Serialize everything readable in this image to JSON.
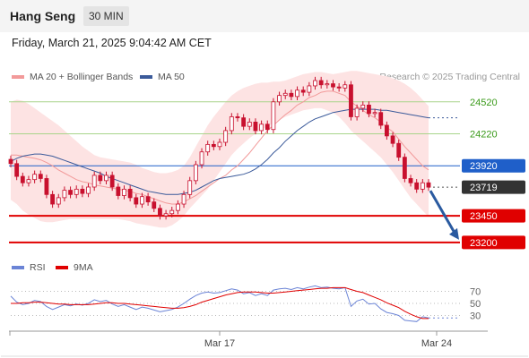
{
  "header": {
    "title": "Hang Seng",
    "interval": "30 MIN",
    "datetime": "Friday, March 21, 2025 9:04:42 AM CET"
  },
  "legend": {
    "ma20": "MA 20 + Bollinger Bands",
    "ma50": "MA 50",
    "credit": "Research © 2025 Trading Central",
    "rsi": "RSI",
    "rsi_ma": "9MA"
  },
  "colors": {
    "bollinger_fill": "#fde3e3",
    "ma20": "#f29a9a",
    "ma50": "#3b5a9a",
    "candle": "#c8102e",
    "level_green": "#a8d48a",
    "level_blue": "#1f5fc9",
    "level_red": "#e00000",
    "current": "#333333",
    "arrow": "#2a5aa0",
    "rsi": "#6b84d6",
    "rsi_ma": "#e00000"
  },
  "chart_data": {
    "type": "line",
    "title": "Hang Seng",
    "interval": "30 MIN",
    "x_ticks": [
      "Mar 17",
      "Mar 24"
    ],
    "ylim": [
      23140,
      24720
    ],
    "levels": [
      {
        "value": 24520,
        "label": "24520",
        "kind": "resistance"
      },
      {
        "value": 24220,
        "label": "24220",
        "kind": "resistance"
      },
      {
        "value": 23920,
        "label": "23920",
        "kind": "pivot"
      },
      {
        "value": 23719,
        "label": "23719",
        "kind": "current"
      },
      {
        "value": 23450,
        "label": "23450",
        "kind": "support"
      },
      {
        "value": 23200,
        "label": "23200",
        "kind": "support"
      }
    ],
    "close": [
      23940,
      23820,
      23760,
      23790,
      23840,
      23800,
      23650,
      23560,
      23620,
      23690,
      23650,
      23700,
      23660,
      23720,
      23830,
      23780,
      23830,
      23720,
      23640,
      23700,
      23620,
      23560,
      23630,
      23580,
      23520,
      23450,
      23470,
      23500,
      23560,
      23650,
      23780,
      23930,
      24050,
      24120,
      24100,
      24140,
      24250,
      24380,
      24370,
      24290,
      24330,
      24250,
      24310,
      24260,
      24520,
      24580,
      24600,
      24570,
      24630,
      24610,
      24670,
      24720,
      24680,
      24690,
      24660,
      24650,
      24680,
      24380,
      24460,
      24490,
      24410,
      24420,
      24300,
      24200,
      24130,
      24000,
      23800,
      23760,
      23700,
      23760,
      23719
    ],
    "ma20": [
      24020,
      24020,
      24010,
      24000,
      23990,
      23975,
      23950,
      23920,
      23880,
      23850,
      23820,
      23790,
      23770,
      23760,
      23740,
      23730,
      23720,
      23710,
      23700,
      23690,
      23680,
      23660,
      23650,
      23630,
      23610,
      23590,
      23570,
      23560,
      23560,
      23580,
      23610,
      23640,
      23680,
      23720,
      23760,
      23800,
      23830,
      23880,
      23920,
      23980,
      24040,
      24110,
      24180,
      24250,
      24300,
      24350,
      24400,
      24440,
      24490,
      24520,
      24560,
      24580,
      24610,
      24620,
      24620,
      24600,
      24580,
      24520,
      24480,
      24440,
      24400,
      24370,
      24330,
      24280,
      24240,
      24170,
      24100,
      24040,
      23980,
      23920,
      23880
    ],
    "ma50": [
      23960,
      23990,
      24010,
      24020,
      24030,
      24030,
      24020,
      24010,
      23990,
      23970,
      23950,
      23930,
      23910,
      23890,
      23870,
      23850,
      23820,
      23800,
      23780,
      23760,
      23740,
      23720,
      23700,
      23680,
      23670,
      23660,
      23650,
      23650,
      23650,
      23660,
      23670,
      23690,
      23720,
      23750,
      23780,
      23800,
      23810,
      23820,
      23830,
      23840,
      23860,
      23890,
      23930,
      23980,
      24040,
      24090,
      24150,
      24200,
      24250,
      24290,
      24330,
      24360,
      24380,
      24400,
      24420,
      24430,
      24440,
      24450,
      24450,
      24450,
      24450,
      24450,
      24440,
      24440,
      24430,
      24420,
      24410,
      24400,
      24390,
      24380,
      24370
    ],
    "bb_upper": [
      24520,
      24540,
      24530,
      24500,
      24460,
      24420,
      24380,
      24340,
      24300,
      24250,
      24200,
      24150,
      24100,
      24060,
      24020,
      24000,
      23990,
      23980,
      23970,
      23960,
      23950,
      23930,
      23900,
      23880,
      23860,
      23850,
      23850,
      23860,
      23880,
      23920,
      24000,
      24100,
      24200,
      24300,
      24380,
      24450,
      24520,
      24580,
      24620,
      24650,
      24670,
      24690,
      24700,
      24700,
      24710,
      24710,
      24720,
      24740,
      24760,
      24780,
      24790,
      24800,
      24800,
      24790,
      24780,
      24790,
      24800,
      24810,
      24810,
      24800,
      24790,
      24780,
      24770,
      24760,
      24740,
      24720,
      24690,
      24650,
      24600,
      24540,
      24480
    ],
    "bb_lower": [
      23600,
      23560,
      23500,
      23460,
      23430,
      23400,
      23390,
      23390,
      23400,
      23410,
      23420,
      23420,
      23420,
      23420,
      23420,
      23420,
      23420,
      23420,
      23420,
      23410,
      23400,
      23380,
      23370,
      23360,
      23350,
      23340,
      23340,
      23360,
      23400,
      23450,
      23520,
      23580,
      23640,
      23700,
      23780,
      23860,
      23940,
      24020,
      24080,
      24130,
      24180,
      24220,
      24260,
      24290,
      24320,
      24350,
      24380,
      24400,
      24420,
      24440,
      24450,
      24460,
      24460,
      24440,
      24420,
      24380,
      24320,
      24250,
      24200,
      24150,
      24100,
      24050,
      24000,
      23930,
      23860,
      23780,
      23700,
      23620,
      23560,
      23500,
      23440
    ],
    "projection": {
      "from": 23719,
      "to": 23200
    },
    "rsi": {
      "ticks": [
        70,
        50,
        30
      ],
      "ylim": [
        10,
        90
      ],
      "rsi": [
        62,
        52,
        48,
        50,
        55,
        53,
        45,
        40,
        44,
        48,
        46,
        49,
        47,
        50,
        56,
        53,
        55,
        49,
        45,
        48,
        44,
        40,
        44,
        42,
        39,
        36,
        38,
        40,
        44,
        50,
        57,
        63,
        67,
        69,
        67,
        68,
        71,
        74,
        72,
        66,
        68,
        63,
        66,
        63,
        72,
        74,
        75,
        73,
        76,
        74,
        77,
        79,
        76,
        77,
        75,
        74,
        76,
        45,
        54,
        57,
        49,
        50,
        41,
        35,
        33,
        30,
        22,
        21,
        20,
        28,
        26
      ],
      "ma9": [
        50,
        50,
        51,
        51,
        52,
        52,
        51,
        50,
        49,
        49,
        48,
        48,
        48,
        48,
        49,
        50,
        51,
        51,
        50,
        50,
        49,
        48,
        47,
        46,
        45,
        44,
        43,
        42,
        42,
        43,
        45,
        48,
        52,
        55,
        58,
        61,
        64,
        66,
        68,
        69,
        69,
        69,
        68,
        67,
        67,
        68,
        69,
        70,
        71,
        72,
        73,
        74,
        75,
        75,
        76,
        76,
        76,
        73,
        70,
        68,
        64,
        60,
        56,
        51,
        47,
        43,
        37,
        32,
        28,
        25,
        25
      ]
    }
  }
}
